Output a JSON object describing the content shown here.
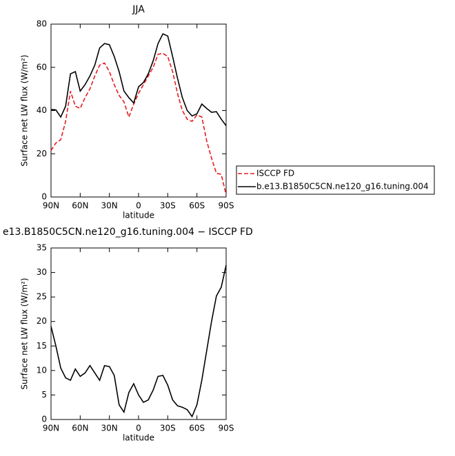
{
  "chart_data": [
    {
      "type": "line",
      "title": "JJA",
      "x_label": "latitude",
      "y_label": "Surface net LW flux (W/m²)",
      "x": [
        90,
        85,
        80,
        75,
        70,
        65,
        60,
        55,
        50,
        45,
        40,
        35,
        30,
        25,
        20,
        15,
        10,
        5,
        0,
        -5,
        -10,
        -15,
        -20,
        -25,
        -30,
        -35,
        -40,
        -45,
        -50,
        -55,
        -60,
        -65,
        -70,
        -75,
        -80,
        -85,
        -90
      ],
      "xlim": [
        90,
        -90
      ],
      "xticks": [
        {
          "value": 90,
          "label": "90N"
        },
        {
          "value": 60,
          "label": "60N"
        },
        {
          "value": 30,
          "label": "30N"
        },
        0,
        {
          "value": -30,
          "label": "30S"
        },
        {
          "value": -60,
          "label": "60S"
        },
        {
          "value": -90,
          "label": "90S"
        }
      ],
      "ylim": [
        0,
        80
      ],
      "yticks": [
        0,
        20,
        40,
        60,
        80
      ],
      "legend": "right",
      "series": [
        {
          "name": "ISCCP FD",
          "color": "#e8191d",
          "dash": true,
          "values": [
            21.5,
            25,
            26.5,
            35,
            49,
            42,
            41,
            46,
            50,
            56,
            61,
            62,
            58,
            52,
            47,
            44,
            37,
            43,
            48,
            52,
            56,
            60,
            66,
            66.5,
            65,
            58,
            48,
            40,
            36,
            35,
            38,
            37,
            26,
            18,
            11,
            10.5,
            1
          ]
        },
        {
          "name": "b.e13.B1850C5CN.ne120_g16.tuning.004",
          "color": "#000000",
          "dash": false,
          "values": [
            40.5,
            40.3,
            37,
            42,
            57,
            58,
            49,
            52,
            56,
            61,
            69,
            71,
            70.5,
            65,
            58,
            49,
            46,
            43.5,
            51,
            53,
            57,
            63,
            71,
            75.5,
            74.5,
            65,
            55,
            46,
            40,
            37.5,
            38.5,
            43,
            41,
            39.2,
            39.5,
            36,
            33
          ]
        }
      ]
    },
    {
      "type": "line",
      "title": "e13.B1850C5CN.ne120_g16.tuning.004 − ISCCP FD",
      "x_label": "latitude",
      "y_label": "Surface net LW flux (W/m²)",
      "x": [
        90,
        85,
        80,
        75,
        70,
        65,
        60,
        55,
        50,
        45,
        40,
        35,
        30,
        25,
        20,
        15,
        10,
        5,
        0,
        -5,
        -10,
        -15,
        -20,
        -25,
        -30,
        -35,
        -40,
        -45,
        -50,
        -55,
        -60,
        -65,
        -70,
        -75,
        -80,
        -85,
        -90
      ],
      "xlim": [
        90,
        -90
      ],
      "xticks": [
        {
          "value": 90,
          "label": "90N"
        },
        {
          "value": 60,
          "label": "60N"
        },
        {
          "value": 30,
          "label": "30N"
        },
        0,
        {
          "value": -30,
          "label": "30S"
        },
        {
          "value": -60,
          "label": "60S"
        },
        {
          "value": -90,
          "label": "90S"
        }
      ],
      "ylim": [
        0,
        35
      ],
      "yticks": [
        0,
        5,
        10,
        15,
        20,
        25,
        30,
        35
      ],
      "color": "#000000",
      "values": [
        19,
        15,
        10.5,
        8.5,
        8,
        10.3,
        8.8,
        9.5,
        11,
        9.5,
        8,
        11,
        10.8,
        9,
        3,
        1.5,
        5.5,
        7.3,
        5,
        3.5,
        4,
        6,
        8.8,
        9,
        7,
        4,
        2.8,
        2.5,
        2,
        0.6,
        3,
        8,
        14,
        20,
        25.2,
        27,
        31.5
      ]
    }
  ]
}
